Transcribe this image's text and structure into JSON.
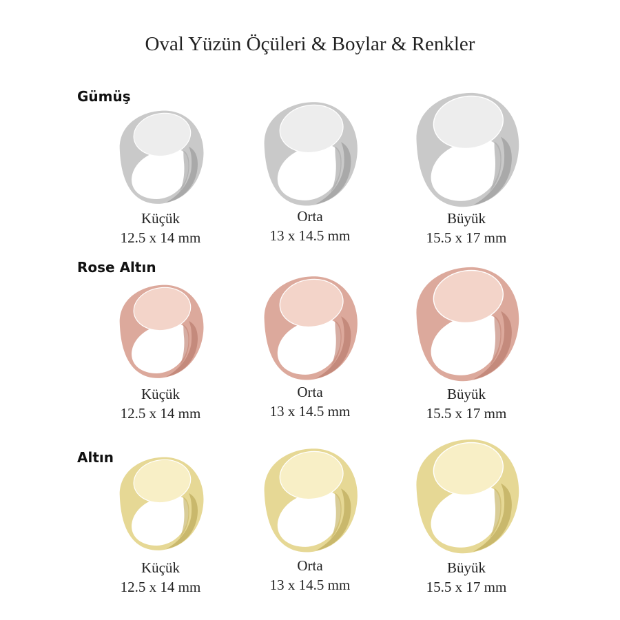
{
  "title": "Oval Yüzün Öçüleri & Boylar & Renkler",
  "rows": [
    {
      "label": "Gümüş",
      "colors": {
        "body": "#c9c9c9",
        "shade": "#a9a9a9",
        "face": "#ededed"
      },
      "items": [
        {
          "name": "Küçük",
          "size": "12.5 x 14 mm"
        },
        {
          "name": "Orta",
          "size": "13 x 14.5 mm"
        },
        {
          "name": "Büyük",
          "size": "15.5 x 17 mm"
        }
      ]
    },
    {
      "label": "Rose Altın",
      "colors": {
        "body": "#dca99c",
        "shade": "#c48a7c",
        "face": "#f3d4c9"
      },
      "items": [
        {
          "name": "Küçük",
          "size": "12.5 x 14 mm"
        },
        {
          "name": "Orta",
          "size": "13 x 14.5 mm"
        },
        {
          "name": "Büyük",
          "size": "15.5 x 17 mm"
        }
      ]
    },
    {
      "label": "Altın",
      "colors": {
        "body": "#e6d895",
        "shade": "#c9b86c",
        "face": "#f8efc6"
      },
      "items": [
        {
          "name": "Küçük",
          "size": "12.5 x 14 mm"
        },
        {
          "name": "Orta",
          "size": "13 x 14.5 mm"
        },
        {
          "name": "Büyük",
          "size": "15.5 x 17 mm"
        }
      ]
    }
  ]
}
